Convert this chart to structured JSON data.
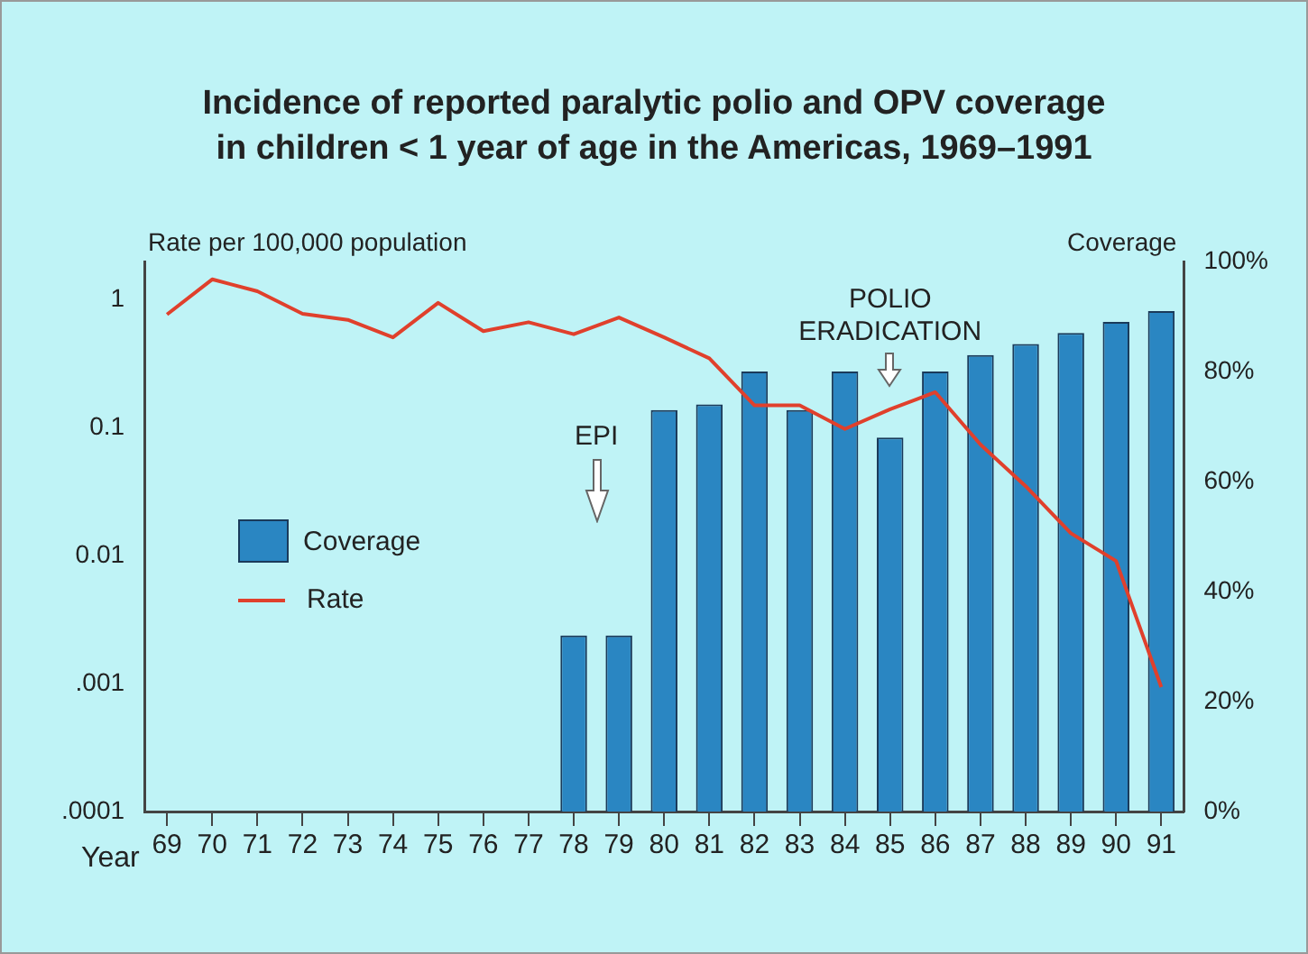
{
  "chart_data": {
    "type": "bar",
    "title": "Incidence of reported paralytic polio and OPV coverage\nin children < 1 year of age in the Americas, 1969–1991",
    "xlabel": "Year",
    "ylabel": "Rate per 100,000 population",
    "y2label": "Coverage",
    "categories": [
      "69",
      "70",
      "71",
      "72",
      "73",
      "74",
      "75",
      "76",
      "77",
      "78",
      "79",
      "80",
      "81",
      "82",
      "83",
      "84",
      "85",
      "86",
      "87",
      "88",
      "89",
      "90",
      "91"
    ],
    "series": [
      {
        "name": "Coverage",
        "axis": "y2",
        "color": "#2a86c2",
        "values": [
          null,
          null,
          null,
          null,
          null,
          null,
          null,
          null,
          null,
          32,
          32,
          73,
          74,
          80,
          73,
          80,
          68,
          80,
          83,
          85,
          87,
          89,
          91
        ]
      },
      {
        "name": "Rate",
        "type": "line",
        "axis": "y",
        "color": "#e0402c",
        "values": [
          0.77,
          1.45,
          1.17,
          0.78,
          0.7,
          0.51,
          0.95,
          0.57,
          0.67,
          0.54,
          0.73,
          0.51,
          0.35,
          0.15,
          0.15,
          0.098,
          0.14,
          0.19,
          0.074,
          0.035,
          0.015,
          0.0091,
          0.00094
        ]
      }
    ],
    "log": "y",
    "ylim": [
      0.0001,
      2
    ],
    "yticks": [
      {
        "value": 0.0001,
        "label": ".0001"
      },
      {
        "value": 0.001,
        "label": ".001"
      },
      {
        "value": 0.01,
        "label": "0.01"
      },
      {
        "value": 0.1,
        "label": "0.1"
      },
      {
        "value": 1,
        "label": "1"
      }
    ],
    "y2lim": [
      0,
      100
    ],
    "y2ticks": [
      {
        "value": 0,
        "label": "0%"
      },
      {
        "value": 20,
        "label": "20%"
      },
      {
        "value": 40,
        "label": "40%"
      },
      {
        "value": 60,
        "label": "60%"
      },
      {
        "value": 80,
        "label": "80%"
      },
      {
        "value": 100,
        "label": "100%"
      }
    ],
    "annotations": [
      "EPI",
      "POLIO\nERADICATION"
    ],
    "grid": false,
    "legend": "left",
    "marker": "none"
  }
}
